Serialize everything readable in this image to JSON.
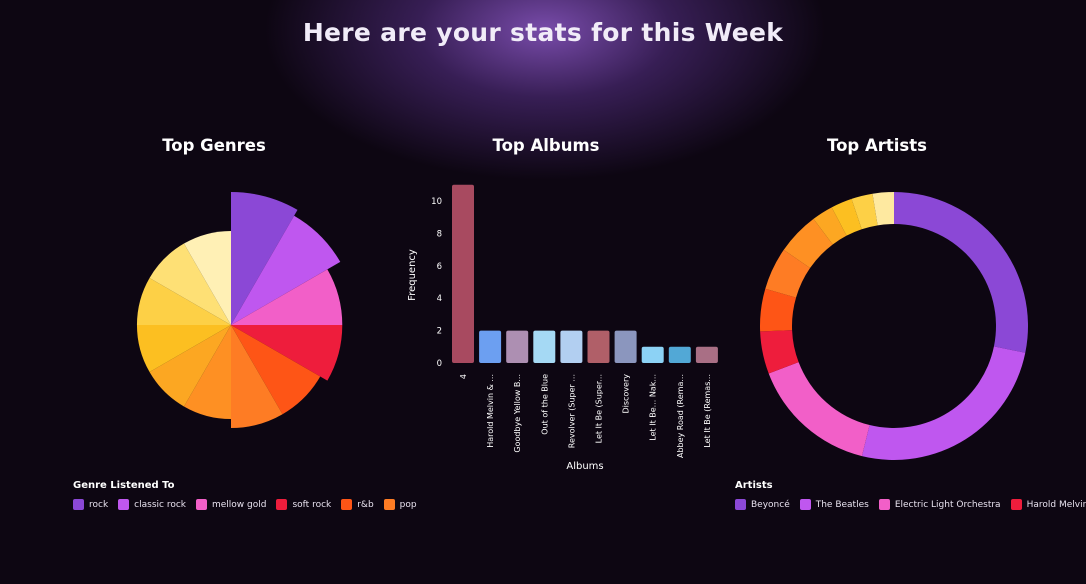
{
  "header": {
    "title": "Here are your stats for this Week"
  },
  "chart_data": [
    {
      "type": "polar-area",
      "title": "Top Genres",
      "legend_title": "Genre Listened To",
      "categories": [
        "rock",
        "classic rock",
        "mellow gold",
        "soft rock",
        "r&b",
        "pop",
        "",
        "",
        "",
        "",
        "",
        ""
      ],
      "values": [
        10,
        9,
        7,
        7,
        6,
        6,
        5,
        5,
        5,
        5,
        5,
        5
      ],
      "colors": [
        "#8b48d6",
        "#bf57ef",
        "#f25fc8",
        "#ee1d3c",
        "#fe5516",
        "#fe7c24",
        "#fe9023",
        "#fca722",
        "#fcbf21",
        "#fdd046",
        "#fee075",
        "#fff0b5"
      ],
      "legend_visible": [
        "rock",
        "classic rock",
        "mellow gold",
        "soft rock",
        "r&b",
        "pop"
      ]
    },
    {
      "type": "bar",
      "title": "Top Albums",
      "xlabel": "Albums",
      "ylabel": "Frequency",
      "ylim": [
        0,
        10
      ],
      "yticks": [
        "0",
        "2",
        "4",
        "6",
        "8",
        "10"
      ],
      "categories": [
        "4",
        "Harold Melvin & ...",
        "Goodbye Yellow B...",
        "Out of the Blue",
        "Revolver (Super ...",
        "Let It Be (Super...",
        "Discovery",
        "Let It Be... Nak...",
        "Abbey Road (Rema...",
        "Let It Be (Remas..."
      ],
      "values": [
        11,
        2,
        2,
        2,
        2,
        2,
        2,
        1,
        1,
        1
      ],
      "colors": [
        "#a84a60",
        "#6c9ff1",
        "#ad8fb2",
        "#a5d9f4",
        "#b2cff1",
        "#b05f68",
        "#8b96be",
        "#8cd2f5",
        "#52a8d6",
        "#a96f85"
      ]
    },
    {
      "type": "donut",
      "title": "Top Artists",
      "legend_title": "Artists",
      "categories": [
        "Beyoncé",
        "The Beatles",
        "Electric Light Orchestra",
        "Harold Melvin &",
        "",
        "",
        "",
        "",
        "",
        "",
        ""
      ],
      "values": [
        11,
        10,
        6,
        2,
        2,
        2,
        2,
        1,
        1,
        1,
        1
      ],
      "colors": [
        "#8b48d6",
        "#bf57ef",
        "#f25fc8",
        "#ee1d3c",
        "#fe5516",
        "#fe7c24",
        "#fe9023",
        "#fca722",
        "#fcbf21",
        "#fdd046",
        "#fee9a0"
      ],
      "legend_visible": [
        "Beyoncé",
        "The Beatles",
        "Electric Light Orchestra",
        "Harold Melvin &"
      ]
    }
  ]
}
